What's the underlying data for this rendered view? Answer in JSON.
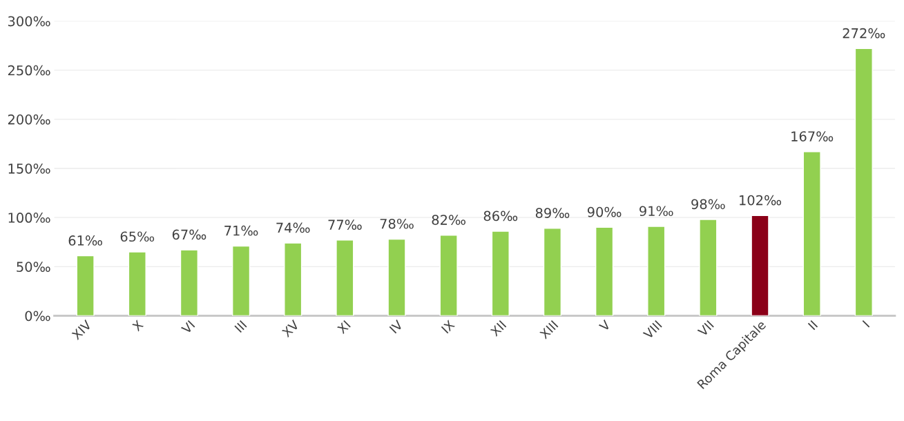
{
  "chart_data": {
    "type": "bar",
    "categories": [
      "XIV",
      "X",
      "VI",
      "III",
      "XV",
      "XI",
      "IV",
      "IX",
      "XII",
      "XIII",
      "V",
      "VIII",
      "VII",
      "Roma Capitale",
      "II",
      "I"
    ],
    "values": [
      61,
      65,
      67,
      71,
      74,
      77,
      78,
      82,
      86,
      89,
      90,
      91,
      98,
      102,
      167,
      272
    ],
    "colors": [
      "#92d050",
      "#92d050",
      "#92d050",
      "#92d050",
      "#92d050",
      "#92d050",
      "#92d050",
      "#92d050",
      "#92d050",
      "#92d050",
      "#92d050",
      "#92d050",
      "#92d050",
      "#8b0018",
      "#92d050",
      "#92d050"
    ],
    "value_labels": [
      "61‰",
      "65‰",
      "67‰",
      "71‰",
      "74‰",
      "77‰",
      "78‰",
      "82‰",
      "86‰",
      "89‰",
      "90‰",
      "91‰",
      "98‰",
      "102‰",
      "167‰",
      "272‰"
    ],
    "ylim": [
      0,
      300
    ],
    "yticks": [
      {
        "value": 0,
        "label": "0‰"
      },
      {
        "value": 50,
        "label": "50‰"
      },
      {
        "value": 100,
        "label": "100‰"
      },
      {
        "value": 150,
        "label": "150‰"
      },
      {
        "value": 200,
        "label": "200‰"
      },
      {
        "value": 250,
        "label": "250‰"
      },
      {
        "value": 300,
        "label": "300‰"
      }
    ],
    "grid": "y"
  }
}
